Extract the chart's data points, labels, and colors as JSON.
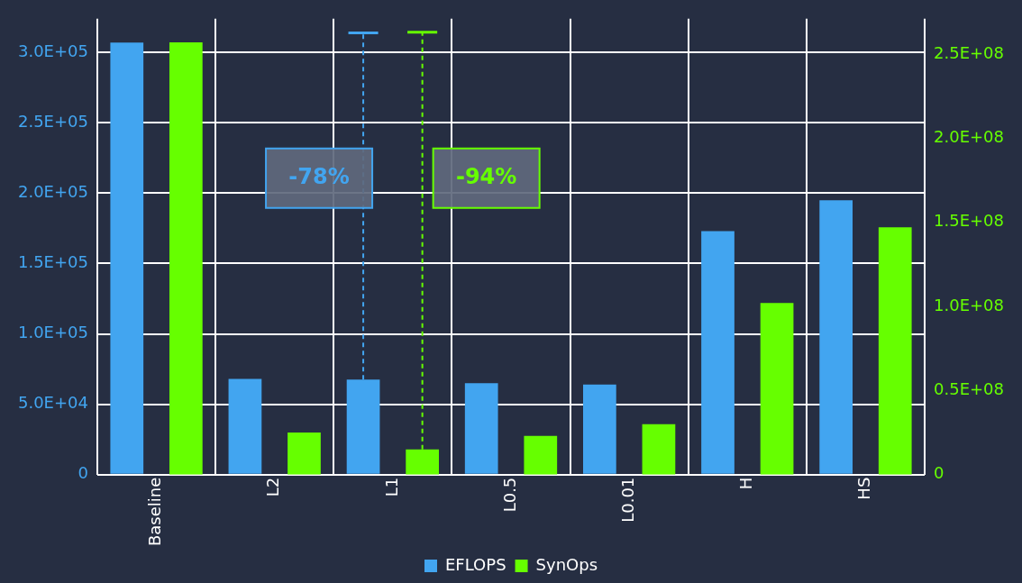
{
  "chart_data": {
    "type": "bar",
    "categories": [
      "Baseline",
      "L2",
      "L1",
      "L0.5",
      "L0.01",
      "H",
      "HS"
    ],
    "series": [
      {
        "name": "EFLOPS",
        "color": "#42a5f0",
        "values": [
          307000,
          68000,
          67500,
          65000,
          64000,
          173000,
          195000
        ],
        "errors": [
          null,
          null,
          [
            67500,
            314000
          ],
          null,
          null,
          null,
          null
        ]
      },
      {
        "name": "SynOps",
        "color": "#66ff00",
        "axis": "y2",
        "values": [
          257000000,
          25000000,
          15000000,
          23000000,
          30000000,
          102000000,
          147000000
        ],
        "errors": [
          null,
          null,
          [
            15000000,
            263000000
          ],
          null,
          null,
          null,
          null
        ]
      }
    ],
    "ylim": [
      0,
      324000
    ],
    "yticks": [
      {
        "value": 0,
        "label": "0"
      },
      {
        "value": 50000,
        "label": "5.0E+04"
      },
      {
        "value": 100000,
        "label": "1.0E+05"
      },
      {
        "value": 150000,
        "label": "1.5E+05"
      },
      {
        "value": 200000,
        "label": "2.0E+05"
      },
      {
        "value": 250000,
        "label": "2.5E+05"
      },
      {
        "value": 300000,
        "label": "3.0E+05"
      }
    ],
    "y2lim": [
      0,
      271000000
    ],
    "y2ticks": [
      {
        "value": 0,
        "label": "0"
      },
      {
        "value": 50000000,
        "label": "0.5E+08"
      },
      {
        "value": 100000000,
        "label": "1.0E+08"
      },
      {
        "value": 150000000,
        "label": "1.5E+08"
      },
      {
        "value": 200000000,
        "label": "2.0E+08"
      },
      {
        "value": 250000000,
        "label": "2.5E+08"
      }
    ],
    "annotations": [
      "-78%",
      "-94%"
    ],
    "grid": true,
    "legend": "bottom"
  }
}
